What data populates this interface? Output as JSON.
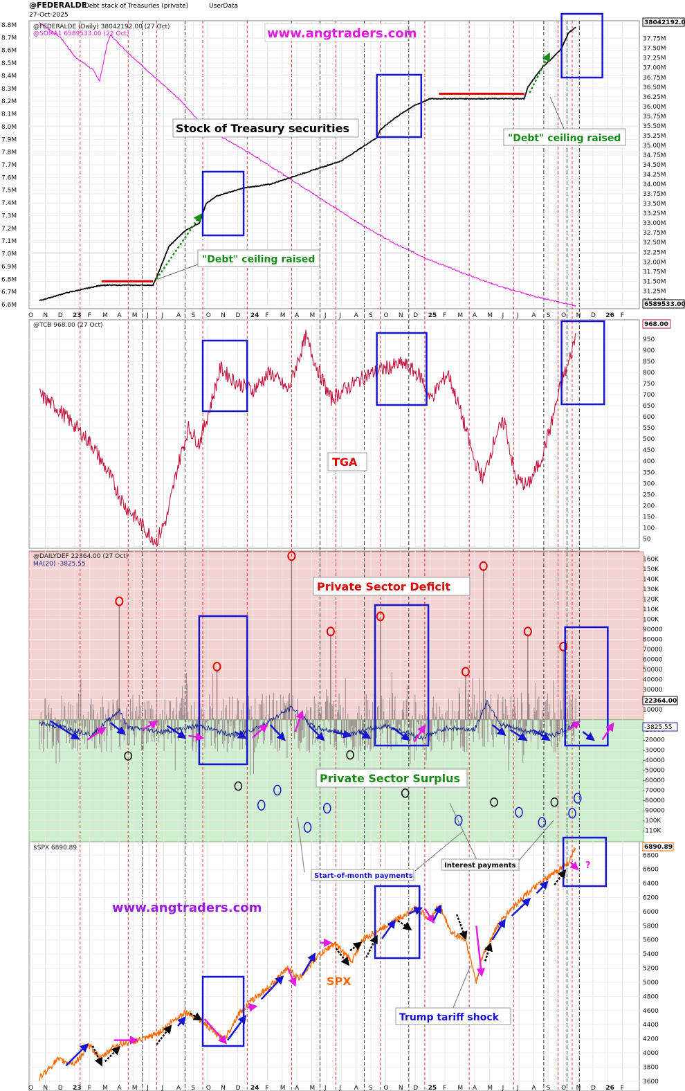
{
  "header": {
    "symbol": "@FEDERALDE",
    "subtitle": "Debt stack of Treasuries (private)",
    "source": "UserData",
    "date": "27-Oct-2025"
  },
  "watermark": "www.angtraders.com",
  "colors": {
    "debt": "#000000",
    "soma": "#e21ae2",
    "tcb": "#c0143c",
    "deficit_bar": "#9a8a8a",
    "ma": "#1a2a8c",
    "spx": "#ff6a00",
    "box": "#1414d2",
    "ceiling": "#e00000",
    "green_arrow": "#1a8a1a",
    "deficit_zone": "#f5d2d2",
    "surplus_zone": "#cfeecf"
  },
  "chart_data": [
    {
      "type": "line",
      "panel": "debt",
      "legend": [
        "@FEDERALDE (Daily) 38042192.00 (27 Oct)",
        "@SOMA1 6589533.00 (22 Oct)"
      ],
      "last_values": {
        "right": "38042192.00",
        "left": "6589533.00"
      },
      "left_axis": {
        "ticks": [
          "8.8M",
          "8.7M",
          "8.6M",
          "8.5M",
          "8.4M",
          "8.3M",
          "8.2M",
          "8.1M",
          "8.0M",
          "7.9M",
          "7.8M",
          "7.7M",
          "7.6M",
          "7.5M",
          "7.4M",
          "7.3M",
          "7.2M",
          "7.1M",
          "7.0M",
          "6.9M",
          "6.8M",
          "6.7M",
          "6.6M"
        ],
        "range": [
          6.6,
          8.8
        ]
      },
      "right_axis": {
        "ticks": [
          "37.75M",
          "37.50M",
          "37.25M",
          "37.00M",
          "36.75M",
          "36.50M",
          "36.25M",
          "36.00M",
          "35.75M",
          "35.50M",
          "35.25M",
          "35.00M",
          "34.75M",
          "34.50M",
          "34.25M",
          "34.00M",
          "33.75M",
          "33.50M",
          "33.25M",
          "33.00M",
          "32.75M",
          "32.50M",
          "32.25M",
          "32.00M",
          "31.75M",
          "31.50M",
          "31.25M",
          "31.00M"
        ],
        "range": [
          30.9,
          38.1
        ]
      },
      "series": [
        {
          "name": "@FEDERALDE",
          "axis": "right",
          "points": [
            [
              2022.8,
              31.0
            ],
            [
              2022.95,
              31.2
            ],
            [
              2023.05,
              31.3
            ],
            [
              2023.15,
              31.4
            ],
            [
              2023.44,
              31.4
            ],
            [
              2023.46,
              31.6
            ],
            [
              2023.53,
              32.4
            ],
            [
              2023.62,
              32.8
            ],
            [
              2023.7,
              33.0
            ],
            [
              2023.74,
              33.5
            ],
            [
              2023.8,
              33.7
            ],
            [
              2023.95,
              33.9
            ],
            [
              2024.1,
              34.0
            ],
            [
              2024.3,
              34.3
            ],
            [
              2024.5,
              34.6
            ],
            [
              2024.7,
              35.2
            ],
            [
              2024.72,
              35.4
            ],
            [
              2024.8,
              35.7
            ],
            [
              2024.9,
              36.0
            ],
            [
              2025.0,
              36.2
            ],
            [
              2025.05,
              36.2
            ],
            [
              2025.53,
              36.2
            ],
            [
              2025.55,
              36.5
            ],
            [
              2025.63,
              37.0
            ],
            [
              2025.7,
              37.3
            ],
            [
              2025.74,
              37.5
            ],
            [
              2025.78,
              37.9
            ],
            [
              2025.82,
              38.04
            ]
          ]
        },
        {
          "name": "@SOMA1",
          "axis": "left",
          "points": [
            [
              2022.8,
              8.82
            ],
            [
              2022.92,
              8.7
            ],
            [
              2023.0,
              8.55
            ],
            [
              2023.1,
              8.45
            ],
            [
              2023.14,
              8.36
            ],
            [
              2023.18,
              8.64
            ],
            [
              2023.2,
              8.72
            ],
            [
              2023.3,
              8.58
            ],
            [
              2023.44,
              8.4
            ],
            [
              2023.6,
              8.2
            ],
            [
              2023.7,
              8.04
            ],
            [
              2023.8,
              7.94
            ],
            [
              2024.0,
              7.78
            ],
            [
              2024.2,
              7.6
            ],
            [
              2024.4,
              7.42
            ],
            [
              2024.6,
              7.24
            ],
            [
              2024.8,
              7.08
            ],
            [
              2025.0,
              6.95
            ],
            [
              2025.2,
              6.84
            ],
            [
              2025.4,
              6.74
            ],
            [
              2025.6,
              6.66
            ],
            [
              2025.7,
              6.63
            ],
            [
              2025.82,
              6.59
            ]
          ]
        }
      ],
      "annotations": [
        "Stock of Treasury securities",
        "\"Debt\" ceiling raised",
        "\"Debt\" ceiling raised"
      ]
    },
    {
      "type": "line",
      "panel": "tga",
      "legend": [
        "@TCB 968.00 (27 Oct)"
      ],
      "last_value": "968.00",
      "axis": {
        "ticks": [
          "950",
          "900",
          "850",
          "800",
          "750",
          "700",
          "650",
          "600",
          "550",
          "500",
          "450",
          "400",
          "350",
          "300",
          "250",
          "200",
          "150",
          "100",
          "50"
        ],
        "range": [
          20,
          1000
        ]
      },
      "series": [
        {
          "name": "@TCB",
          "points": [
            [
              2022.8,
              700
            ],
            [
              2022.9,
              640
            ],
            [
              2023.0,
              560
            ],
            [
              2023.1,
              470
            ],
            [
              2023.2,
              330
            ],
            [
              2023.28,
              200
            ],
            [
              2023.35,
              140
            ],
            [
              2023.42,
              70
            ],
            [
              2023.46,
              40
            ],
            [
              2023.52,
              150
            ],
            [
              2023.58,
              380
            ],
            [
              2023.64,
              550
            ],
            [
              2023.7,
              480
            ],
            [
              2023.76,
              640
            ],
            [
              2023.82,
              820
            ],
            [
              2023.9,
              760
            ],
            [
              2024.0,
              720
            ],
            [
              2024.1,
              800
            ],
            [
              2024.2,
              720
            ],
            [
              2024.3,
              960
            ],
            [
              2024.36,
              830
            ],
            [
              2024.44,
              680
            ],
            [
              2024.55,
              740
            ],
            [
              2024.65,
              790
            ],
            [
              2024.75,
              820
            ],
            [
              2024.85,
              840
            ],
            [
              2024.95,
              780
            ],
            [
              2025.0,
              680
            ],
            [
              2025.1,
              800
            ],
            [
              2025.18,
              600
            ],
            [
              2025.25,
              400
            ],
            [
              2025.3,
              320
            ],
            [
              2025.37,
              520
            ],
            [
              2025.42,
              580
            ],
            [
              2025.48,
              320
            ],
            [
              2025.55,
              290
            ],
            [
              2025.62,
              400
            ],
            [
              2025.68,
              560
            ],
            [
              2025.74,
              760
            ],
            [
              2025.78,
              840
            ],
            [
              2025.82,
              968
            ]
          ]
        }
      ],
      "annotations": [
        "TGA"
      ]
    },
    {
      "type": "bar",
      "panel": "deficit",
      "legend": [
        "@DAILYDEF 22364.00 (27 Oct)",
        "MA(20) -3825.55"
      ],
      "last_values": {
        "dailydef": "22364.00",
        "ma": "-3825.55"
      },
      "axis": {
        "ticks": [
          "160K",
          "150K",
          "140K",
          "130K",
          "120K",
          "110K",
          "100K",
          "90000",
          "80000",
          "70000",
          "60000",
          "50000",
          "40000",
          "30000",
          "20000",
          "10000",
          "-10000",
          "-20000",
          "-30000",
          "-40000",
          "-50000",
          "-60000",
          "-70000",
          "-80000",
          "-90000",
          "-100K",
          "-110K"
        ],
        "range": [
          -120000,
          165000
        ]
      },
      "spikes": [
        [
          2023.25,
          115000
        ],
        [
          2023.8,
          50000
        ],
        [
          2024.22,
          160000
        ],
        [
          2024.44,
          85000
        ],
        [
          2024.72,
          100000
        ],
        [
          2025.2,
          45000
        ],
        [
          2025.3,
          150000
        ],
        [
          2025.55,
          85000
        ],
        [
          2025.75,
          70000
        ]
      ],
      "series": [
        {
          "name": "MA(20)",
          "points": [
            [
              2022.8,
              -3000
            ],
            [
              2022.95,
              -8000
            ],
            [
              2023.1,
              -15000
            ],
            [
              2023.2,
              2000
            ],
            [
              2023.25,
              9000
            ],
            [
              2023.3,
              -8000
            ],
            [
              2023.5,
              -12000
            ],
            [
              2023.7,
              -6000
            ],
            [
              2023.9,
              -16000
            ],
            [
              2024.05,
              -6000
            ],
            [
              2024.22,
              12000
            ],
            [
              2024.35,
              -8000
            ],
            [
              2024.55,
              -14000
            ],
            [
              2024.75,
              -6000
            ],
            [
              2024.95,
              -18000
            ],
            [
              2025.1,
              -8000
            ],
            [
              2025.25,
              -10000
            ],
            [
              2025.32,
              18000
            ],
            [
              2025.4,
              -5000
            ],
            [
              2025.55,
              -12000
            ],
            [
              2025.7,
              -15000
            ],
            [
              2025.82,
              -3825
            ]
          ]
        }
      ],
      "annotations": [
        "Private Sector Deficit",
        "Private Sector Surplus",
        "Start-of-month payments",
        "Interest payments"
      ]
    },
    {
      "type": "line",
      "panel": "spx",
      "legend": [
        "$SPX 6890.89"
      ],
      "last_value": "6890.89",
      "axis": {
        "ticks": [
          "6800",
          "6600",
          "6400",
          "6200",
          "6000",
          "5800",
          "5600",
          "5400",
          "5200",
          "5000",
          "4800",
          "4600",
          "4400",
          "4200",
          "4000",
          "3800",
          "3600"
        ],
        "range": [
          3500,
          6950
        ]
      },
      "series": [
        {
          "name": "$SPX",
          "points": [
            [
              2022.8,
              3640
            ],
            [
              2022.9,
              3900
            ],
            [
              2023.0,
              3850
            ],
            [
              2023.08,
              4100
            ],
            [
              2023.15,
              3920
            ],
            [
              2023.22,
              4100
            ],
            [
              2023.3,
              4150
            ],
            [
              2023.4,
              4200
            ],
            [
              2023.48,
              4300
            ],
            [
              2023.55,
              4450
            ],
            [
              2023.62,
              4580
            ],
            [
              2023.7,
              4480
            ],
            [
              2023.78,
              4300
            ],
            [
              2023.84,
              4180
            ],
            [
              2023.92,
              4550
            ],
            [
              2024.0,
              4750
            ],
            [
              2024.1,
              4950
            ],
            [
              2024.2,
              5200
            ],
            [
              2024.26,
              5050
            ],
            [
              2024.36,
              5350
            ],
            [
              2024.46,
              5550
            ],
            [
              2024.56,
              5300
            ],
            [
              2024.62,
              5600
            ],
            [
              2024.72,
              5750
            ],
            [
              2024.82,
              5900
            ],
            [
              2024.92,
              6050
            ],
            [
              2025.0,
              5900
            ],
            [
              2025.05,
              6100
            ],
            [
              2025.12,
              5700
            ],
            [
              2025.2,
              5600
            ],
            [
              2025.26,
              5000
            ],
            [
              2025.3,
              5400
            ],
            [
              2025.38,
              5800
            ],
            [
              2025.46,
              6050
            ],
            [
              2025.54,
              6250
            ],
            [
              2025.62,
              6400
            ],
            [
              2025.7,
              6550
            ],
            [
              2025.78,
              6700
            ],
            [
              2025.82,
              6890
            ]
          ]
        }
      ],
      "annotations": [
        "SPX",
        "Trump tariff shock",
        "?"
      ]
    }
  ],
  "x_axis": {
    "labels": [
      "O",
      "N",
      "D",
      "23",
      "F",
      "M",
      "A",
      "M",
      "J",
      "J",
      "A",
      "S",
      "O",
      "N",
      "D",
      "24",
      "F",
      "M",
      "A",
      "M",
      "J",
      "J",
      "A",
      "S",
      "O",
      "N",
      "D",
      "25",
      "F",
      "M",
      "A",
      "M",
      "J",
      "J",
      "A",
      "S",
      "O",
      "N",
      "D",
      "26",
      "F"
    ]
  }
}
